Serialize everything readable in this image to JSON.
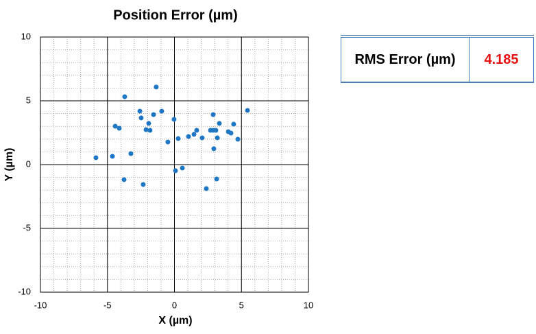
{
  "chart_data": {
    "type": "scatter",
    "title": "Position Error (µm)",
    "x_label": "X (µm)",
    "y_label": "Y (µm)",
    "x": [
      -5.86,
      -4.63,
      -4.42,
      -4.12,
      -3.71,
      -3.76,
      -3.25,
      -2.58,
      -2.48,
      -2.33,
      -2.12,
      -1.92,
      -1.82,
      -1.56,
      -1.36,
      -0.95,
      -0.49,
      -0.03,
      0.08,
      0.28,
      0.59,
      1.05,
      1.46,
      1.66,
      2.07,
      2.38,
      2.69,
      2.89,
      2.89,
      2.94,
      3.09,
      3.2,
      3.15,
      3.35,
      4.02,
      4.22,
      4.42,
      4.73,
      5.45
    ],
    "values": [
      0.54,
      0.65,
      3.01,
      2.85,
      5.32,
      -1.18,
      0.86,
      4.19,
      3.66,
      -1.56,
      2.74,
      3.23,
      2.69,
      3.92,
      6.08,
      4.19,
      1.77,
      3.55,
      -0.48,
      2.04,
      -0.27,
      2.2,
      2.37,
      2.69,
      2.1,
      -1.88,
      2.69,
      3.92,
      2.69,
      1.24,
      2.69,
      2.1,
      -1.13,
      3.23,
      2.58,
      2.47,
      3.17,
      1.99,
      4.25
    ],
    "color": "#1f77c4",
    "xlim": [
      -10,
      10
    ],
    "ylim": [
      -10,
      10
    ],
    "xticks": [
      -10,
      -5,
      0,
      5,
      10
    ],
    "yticks": [
      -10,
      -5,
      0,
      5,
      10
    ],
    "grid": true
  },
  "table": {
    "label": "RMS Error (µm)",
    "value": "4.185"
  }
}
